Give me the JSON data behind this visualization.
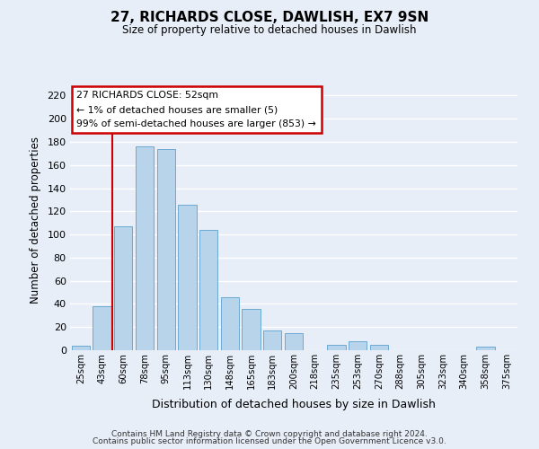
{
  "title": "27, RICHARDS CLOSE, DAWLISH, EX7 9SN",
  "subtitle": "Size of property relative to detached houses in Dawlish",
  "xlabel": "Distribution of detached houses by size in Dawlish",
  "ylabel": "Number of detached properties",
  "bar_labels": [
    "25sqm",
    "43sqm",
    "60sqm",
    "78sqm",
    "95sqm",
    "113sqm",
    "130sqm",
    "148sqm",
    "165sqm",
    "183sqm",
    "200sqm",
    "218sqm",
    "235sqm",
    "253sqm",
    "270sqm",
    "288sqm",
    "305sqm",
    "323sqm",
    "340sqm",
    "358sqm",
    "375sqm"
  ],
  "bar_values": [
    4,
    38,
    107,
    176,
    174,
    126,
    104,
    46,
    36,
    17,
    15,
    0,
    5,
    8,
    5,
    0,
    0,
    0,
    0,
    3,
    0
  ],
  "bar_color": "#b8d4ea",
  "bar_edge_color": "#6aaad4",
  "vline_x_index": 2,
  "vline_color": "#cc0000",
  "ylim": [
    0,
    225
  ],
  "yticks": [
    0,
    20,
    40,
    60,
    80,
    100,
    120,
    140,
    160,
    180,
    200,
    220
  ],
  "annotation_title": "27 RICHARDS CLOSE: 52sqm",
  "annotation_line1": "← 1% of detached houses are smaller (5)",
  "annotation_line2": "99% of semi-detached houses are larger (853) →",
  "annotation_box_color": "#ffffff",
  "annotation_box_edge": "#cc0000",
  "footer_line1": "Contains HM Land Registry data © Crown copyright and database right 2024.",
  "footer_line2": "Contains public sector information licensed under the Open Government Licence v3.0.",
  "background_color": "#e8eef8",
  "grid_color": "#ffffff"
}
